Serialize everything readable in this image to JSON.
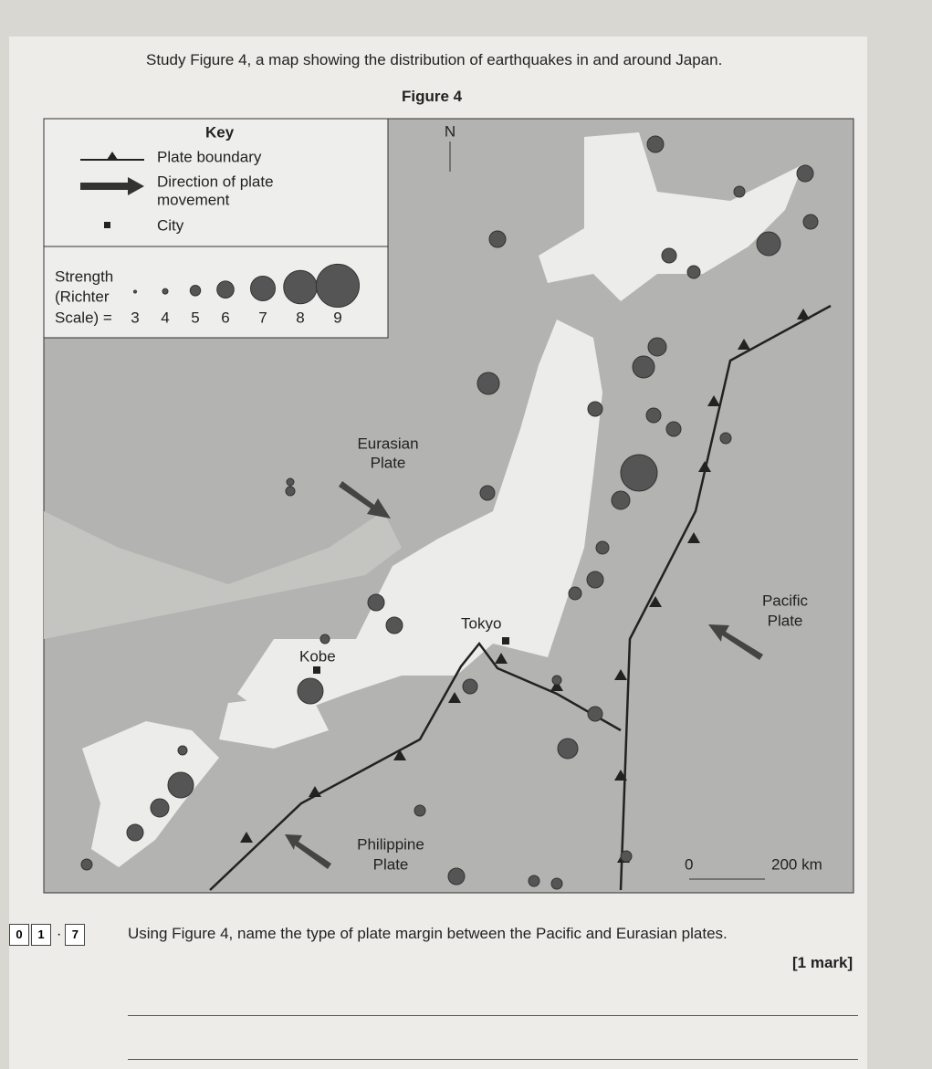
{
  "header": {
    "intro": "Study Figure 4, a map showing the distribution of earthquakes in and around Japan.",
    "figure_title": "Figure 4"
  },
  "key": {
    "title": "Key",
    "plate_boundary": "Plate boundary",
    "direction_line1": "Direction of plate",
    "direction_line2": "movement",
    "city": "City",
    "strength_line1": "Strength",
    "strength_line2": "(Richter",
    "strength_line3": "Scale) =",
    "strength_values": [
      3,
      4,
      5,
      6,
      7,
      8,
      9
    ]
  },
  "map": {
    "north": "N",
    "eurasian": [
      "Eurasian",
      "Plate"
    ],
    "pacific": [
      "Pacific",
      "Plate"
    ],
    "philippine": [
      "Philippine",
      "Plate"
    ],
    "tokyo": "Tokyo",
    "kobe": "Kobe",
    "scale_start": "0",
    "scale_end": "200 km"
  },
  "question": {
    "number": [
      "0",
      "1",
      "7"
    ],
    "text": "Using Figure 4, name the type of plate margin between the Pacific and Eurasian plates.",
    "marks": "[1 mark]"
  }
}
